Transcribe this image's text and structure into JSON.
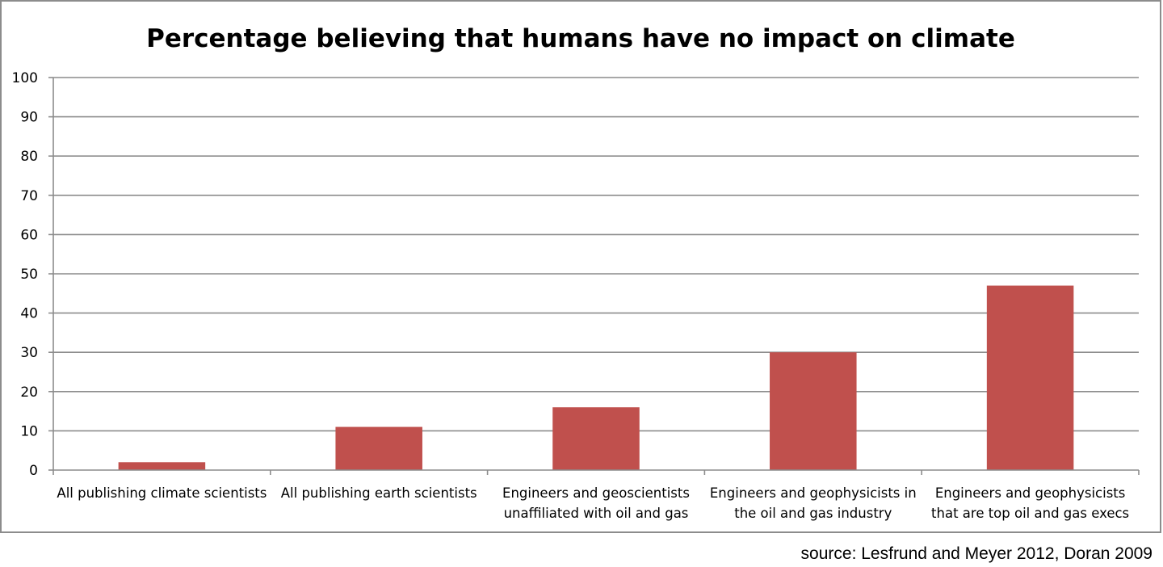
{
  "chart_data": {
    "type": "bar",
    "title": "Percentage believing that humans have no impact on climate",
    "xlabel": "",
    "ylabel": "",
    "ylim": [
      0,
      100
    ],
    "yticks": [
      0,
      10,
      20,
      30,
      40,
      50,
      60,
      70,
      80,
      90,
      100
    ],
    "grid": true,
    "legend": "none",
    "bar_color": "#c0504d",
    "categories": [
      [
        "All publishing climate scientists"
      ],
      [
        "All publishing earth scientists"
      ],
      [
        "Engineers and geoscientists",
        "unaffiliated with oil and gas"
      ],
      [
        "Engineers and geophysicists in",
        "the oil and gas industry"
      ],
      [
        "Engineers and geophysicists",
        "that are top oil and gas execs"
      ]
    ],
    "values": [
      2,
      11,
      16,
      30,
      47
    ]
  },
  "source": "source: Lesfrund and Meyer 2012, Doran 2009"
}
